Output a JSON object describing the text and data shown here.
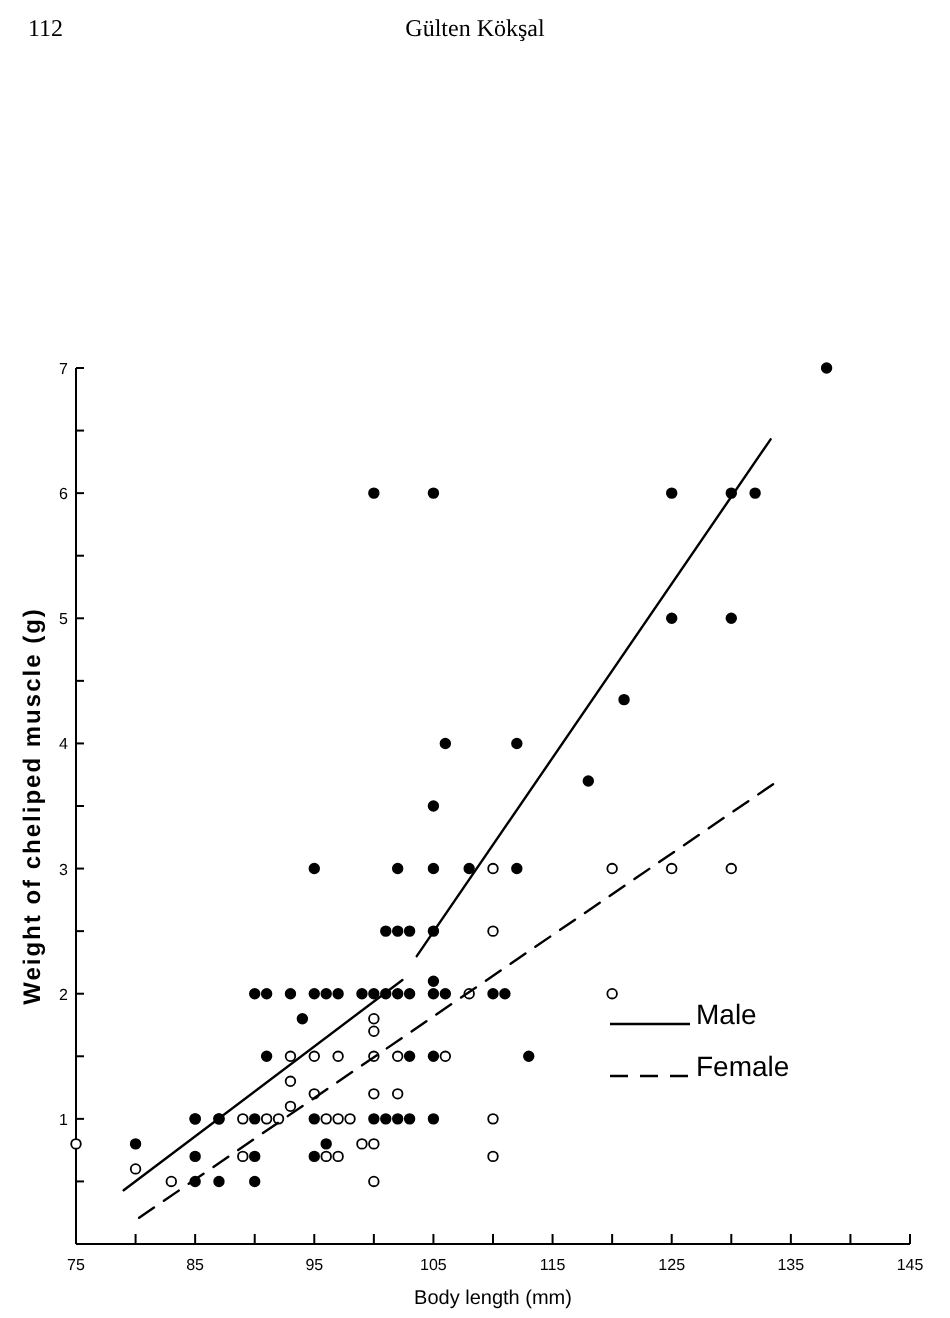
{
  "chart_data": {
    "type": "scatter",
    "xlabel": "Body length (mm)",
    "ylabel": "Weight of cheliped muscle (g)",
    "annotations": [
      "112",
      "Gülten Kökşal"
    ],
    "xlim": [
      75,
      145
    ],
    "ylim": [
      0,
      7
    ],
    "xticks": [
      75,
      {
        "value": 80,
        "label": null
      },
      85,
      {
        "value": 90,
        "label": null
      },
      95,
      {
        "value": 100,
        "label": null
      },
      105,
      {
        "value": 110,
        "label": null
      },
      115,
      {
        "value": 120,
        "label": null
      },
      125,
      {
        "value": 130,
        "label": null
      },
      135,
      {
        "value": 140,
        "label": null
      },
      145
    ],
    "yticks": [
      {
        "value": 0.5,
        "label": null
      },
      1,
      {
        "value": 1.5,
        "label": null
      },
      2,
      {
        "value": 2.5,
        "label": null
      },
      3,
      {
        "value": 3.5,
        "label": null
      },
      4,
      {
        "value": 4.5,
        "label": null
      },
      5,
      {
        "value": 5.5,
        "label": null
      },
      6,
      {
        "value": 6.5,
        "label": null
      },
      7
    ],
    "grid": false,
    "legend": "bottom right",
    "marker": "circle",
    "series": [
      {
        "color": "#000000",
        "x": [
          80,
          85,
          85,
          85,
          87,
          87,
          90,
          91,
          93,
          95,
          96,
          97,
          99,
          100,
          101,
          102,
          103,
          105,
          106,
          110,
          111,
          95,
          102,
          105,
          108,
          112,
          101,
          102,
          103,
          105,
          105,
          94,
          91,
          103,
          105,
          113,
          85,
          87,
          90,
          95,
          100,
          101,
          102,
          103,
          105,
          90,
          95,
          96,
          90,
          100,
          105,
          106,
          105,
          138,
          125,
          130,
          132,
          125,
          130,
          121,
          112,
          118
        ],
        "values": [
          0.8,
          1,
          0.7,
          0.5,
          1,
          0.5,
          2,
          2,
          2,
          2,
          2,
          2,
          2,
          2,
          2,
          2,
          2,
          2,
          2,
          2,
          2,
          3,
          3,
          3,
          3,
          3,
          2.5,
          2.5,
          2.5,
          2.5,
          2.1,
          1.8,
          1.5,
          1.5,
          1.5,
          1.5,
          1,
          1,
          1,
          1,
          1,
          1,
          1,
          1,
          1,
          0.7,
          0.7,
          0.8,
          0.5,
          6,
          6,
          4,
          3.5,
          7,
          6,
          6,
          6,
          5,
          5,
          4.35,
          4,
          3.7
        ]
      },
      {
        "color": "#ffffff",
        "x": [
          75,
          80,
          83,
          89,
          89,
          91,
          92,
          93,
          93,
          93,
          95,
          95,
          96,
          97,
          98,
          97,
          96,
          97,
          99,
          100,
          100,
          100,
          100,
          100,
          100,
          102,
          102,
          106,
          108,
          110,
          110,
          110,
          110,
          120,
          125,
          130,
          120
        ],
        "values": [
          0.8,
          0.6,
          0.5,
          1,
          0.7,
          1,
          1,
          1.5,
          1.3,
          1.1,
          1.5,
          1.2,
          1,
          1,
          1,
          1.5,
          0.7,
          0.7,
          0.8,
          0.8,
          0.5,
          1.2,
          1.5,
          1.7,
          1.8,
          1.2,
          1.5,
          1.5,
          2,
          3,
          2.5,
          1,
          0.7,
          3,
          3,
          3,
          2
        ]
      },
      {
        "type": "line",
        "name": "Male",
        "color": "#000000",
        "marker": "none",
        "line_style": "solid",
        "x": [
          79,
          102.4,
          103,
          103.6,
          133.3
        ],
        "values": [
          0.43,
          2.11,
          null,
          2.3,
          6.43
        ]
      },
      {
        "type": "line",
        "name": "Female",
        "color": "#000000",
        "marker": "none",
        "line_style": "dashed",
        "x": [
          80.3,
          133.6
        ],
        "values": [
          0.21,
          3.68
        ]
      }
    ]
  }
}
